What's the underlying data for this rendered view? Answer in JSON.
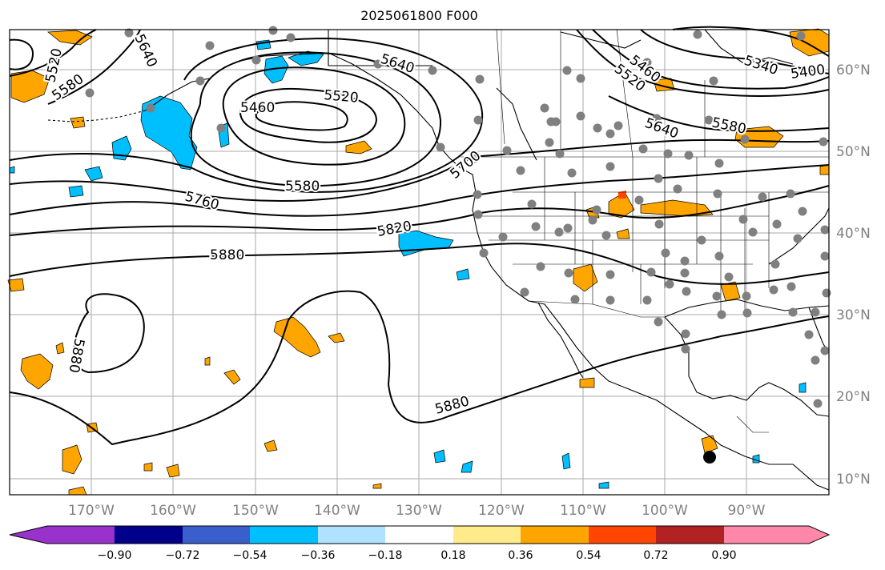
{
  "title": "2025061800 F000",
  "longitude_labels": [
    "170°W",
    "160°W",
    "150°W",
    "140°W",
    "130°W",
    "120°W",
    "110°W",
    "100°W",
    "90°W"
  ],
  "latitude_labels": [
    "60°N",
    "50°N",
    "40°N",
    "30°N",
    "20°N",
    "10°N"
  ],
  "contour_labels": [
    "5640",
    "5520",
    "5580",
    "5640",
    "5460",
    "5520",
    "5580",
    "5760",
    "5820",
    "5880",
    "5880",
    "5880",
    "5460",
    "5520",
    "5640",
    "5580",
    "5340",
    "5400",
    "5700"
  ],
  "colorbar": {
    "colors": [
      "#9932cc",
      "#00008b",
      "#3a5fcd",
      "#00bfff",
      "#b0e2ff",
      "#ffffff",
      "#ffeb8a",
      "#ffa500",
      "#ff4500",
      "#b22222",
      "#ff88aa"
    ],
    "tick_labels": [
      "−0.90",
      "−0.72",
      "−0.54",
      "−0.36",
      "−0.18",
      "0.18",
      "0.36",
      "0.54",
      "0.72",
      "0.90"
    ]
  },
  "colors": {
    "positive_fill": "#ffa500",
    "negative_fill": "#00bfff",
    "station_dot": "#808080",
    "marker": "#000000"
  }
}
